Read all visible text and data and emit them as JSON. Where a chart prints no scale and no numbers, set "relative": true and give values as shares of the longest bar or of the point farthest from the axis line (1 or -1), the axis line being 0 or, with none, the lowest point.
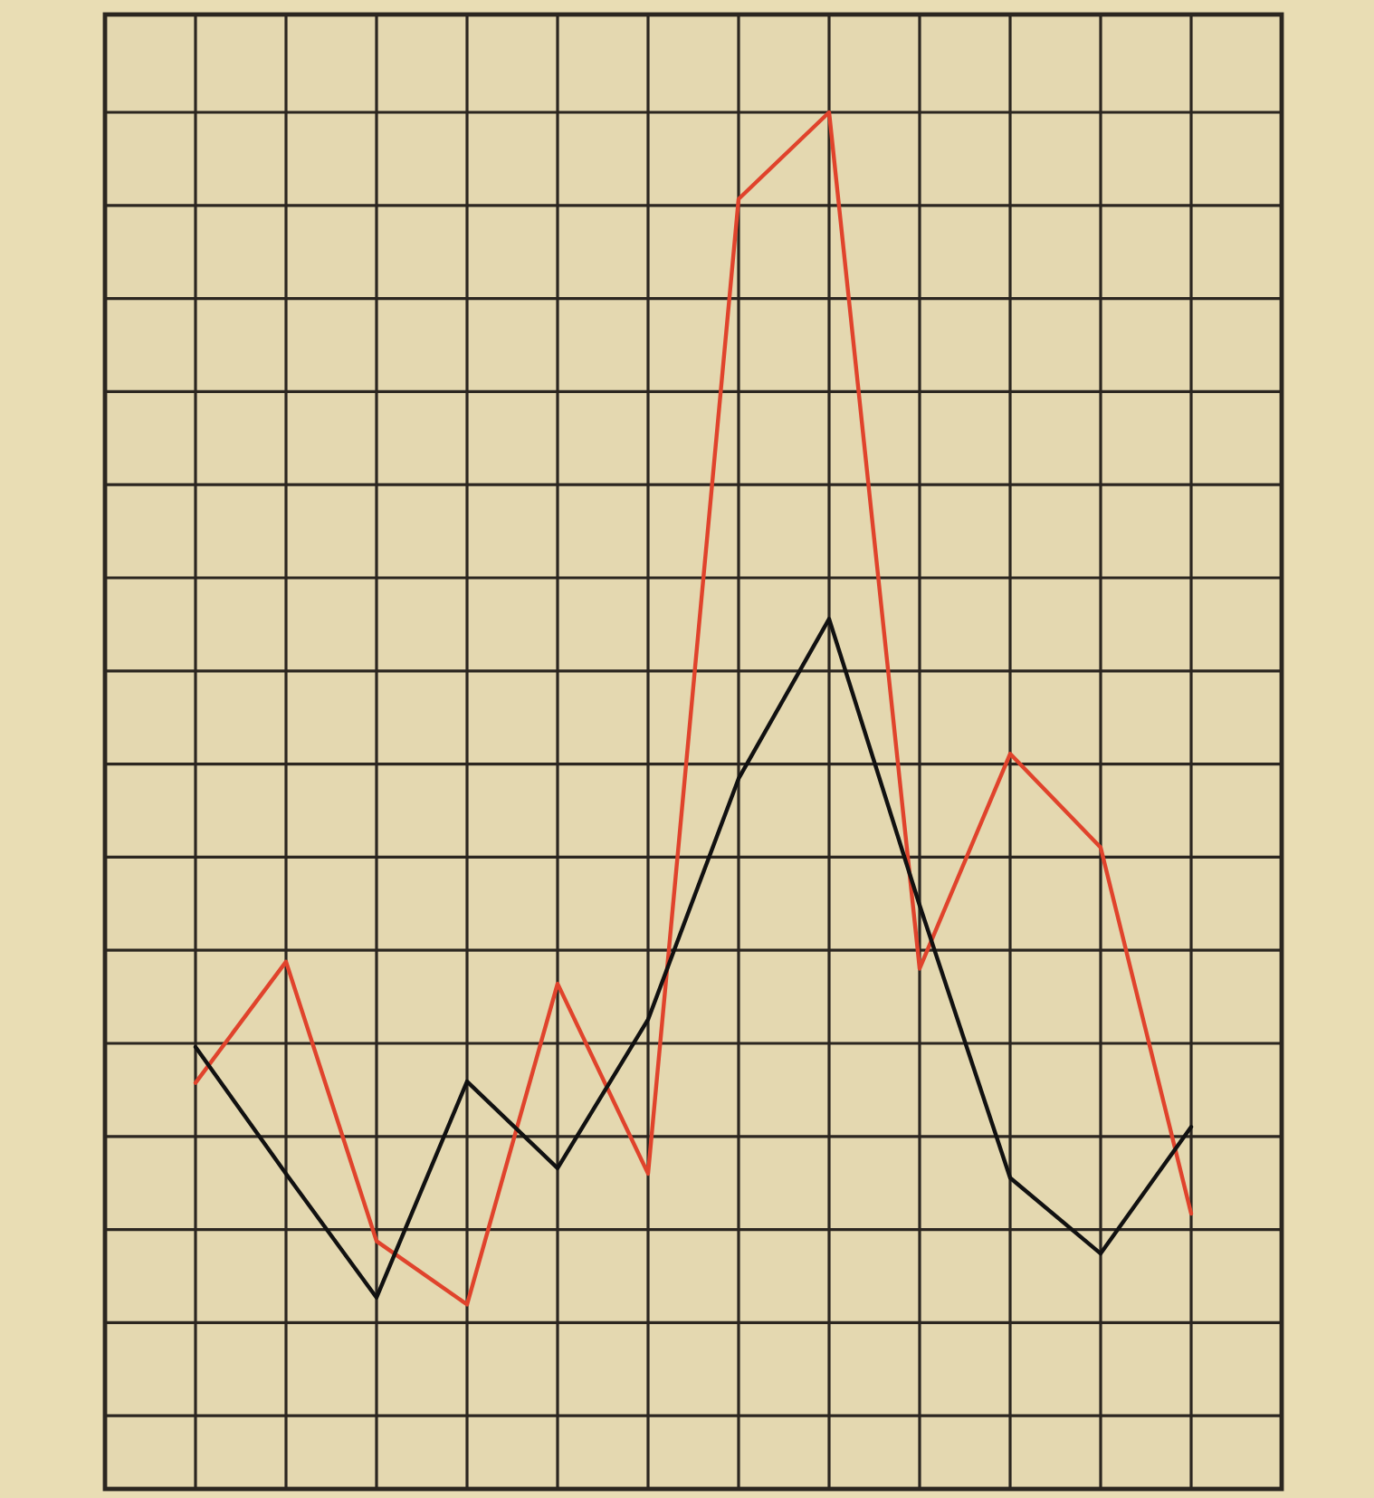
{
  "chart_data": {
    "type": "line",
    "relative": true,
    "grid": true,
    "marker": "none",
    "line_style": "solid",
    "categories": [
      null,
      null,
      null,
      null,
      null,
      null,
      null,
      null,
      null,
      null,
      null,
      null
    ],
    "series": [
      {
        "color": "#e0432c",
        "values": [
          0.295,
          0.383,
          0.18,
          0.134,
          0.367,
          0.229,
          0.937,
          1,
          0.378,
          0.534,
          0.466,
          0.2
        ]
      },
      {
        "color": "#111111",
        "values": [
          0.321,
          0.229,
          0.139,
          0.296,
          0.233,
          0.341,
          0.516,
          0.632,
          0.424,
          0.226,
          0.171,
          0.263
        ]
      }
    ]
  }
}
